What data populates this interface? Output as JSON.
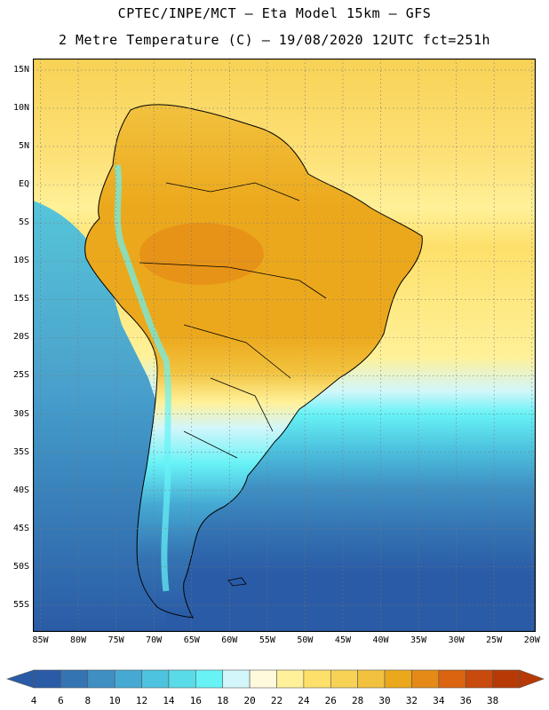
{
  "header": {
    "title_line1": "CPTEC/INPE/MCT –  Eta Model 15km – GFS",
    "title_line2": "2 Metre Temperature (C) – 19/08/2020 12UTC fct=251h"
  },
  "map": {
    "lat_labels": [
      "15N",
      "10N",
      "5N",
      "EQ",
      "5S",
      "10S",
      "15S",
      "20S",
      "25S",
      "30S",
      "35S",
      "40S",
      "45S",
      "50S",
      "55S"
    ],
    "lon_labels": [
      "85W",
      "80W",
      "75W",
      "70W",
      "65W",
      "60W",
      "55W",
      "50W",
      "45W",
      "40W",
      "35W",
      "30W",
      "25W",
      "20W"
    ],
    "lat_range": [
      16.5,
      -58.5
    ],
    "lon_range": [
      -86,
      -19.5
    ]
  },
  "colorbar": {
    "labels": [
      "4",
      "6",
      "8",
      "10",
      "12",
      "14",
      "16",
      "18",
      "20",
      "22",
      "24",
      "26",
      "28",
      "30",
      "32",
      "34",
      "36",
      "38"
    ],
    "colors": [
      "#2a5ba6",
      "#3474b3",
      "#3f8fc3",
      "#45a9d3",
      "#4dc3df",
      "#59dbe8",
      "#67f2f6",
      "#d2f6fa",
      "#fffadc",
      "#fff199",
      "#fde06a",
      "#f8d255",
      "#f2c23e",
      "#eca81c",
      "#e58a17",
      "#da6410",
      "#c84a0c",
      "#b73a06"
    ]
  },
  "colors": {
    "ocean_warm": "#fde27a",
    "land_hot": "#eca81c",
    "ocean_cold": "#2a5ba6"
  }
}
